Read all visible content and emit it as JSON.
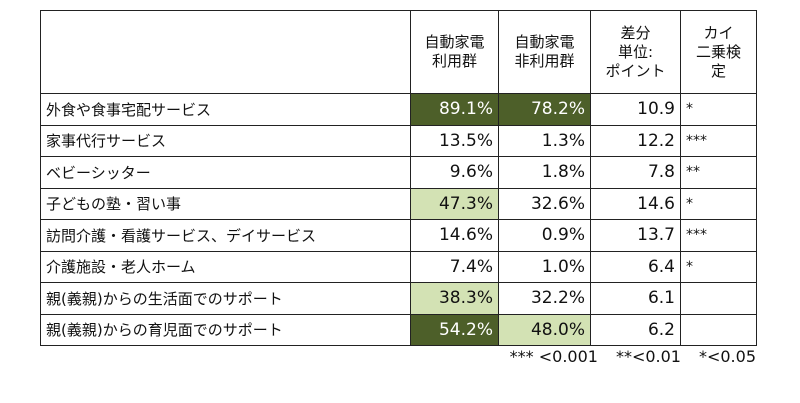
{
  "table": {
    "header": [
      [
        "自動家電",
        "利用群"
      ],
      [
        "自動家電",
        "非利用群"
      ],
      [
        "差分",
        "単位:",
        "ポイント"
      ],
      [
        "カイ",
        "二乗検",
        "定"
      ]
    ],
    "rows": [
      [
        "外食や食事宅配サービス",
        "89.1%",
        "78.2%",
        "10.9",
        "*"
      ],
      [
        "家事代行サービス",
        "13.5%",
        "1.3%",
        "12.2",
        "***"
      ],
      [
        "ベビーシッター",
        "9.6%",
        "1.8%",
        "7.8",
        "**"
      ],
      [
        "子どもの塾・習い事",
        "47.3%",
        "32.6%",
        "14.6",
        "*"
      ],
      [
        "訪問介護・看護サービス、デイサービス",
        "14.6%",
        "0.9%",
        "13.7",
        "***"
      ],
      [
        "介護施設・老人ホーム",
        "7.4%",
        "1.0%",
        "6.4",
        "*"
      ],
      [
        "親(義親)からの生活面でのサポート",
        "38.3%",
        "32.2%",
        "6.1"
      ],
      [
        "親(義親)からの育児面でのサポート",
        "54.2%",
        "48.0%",
        "6.2"
      ]
    ],
    "footnote": [
      "*** <0.001",
      "**<0.01",
      "*<0.05"
    ]
  }
}
